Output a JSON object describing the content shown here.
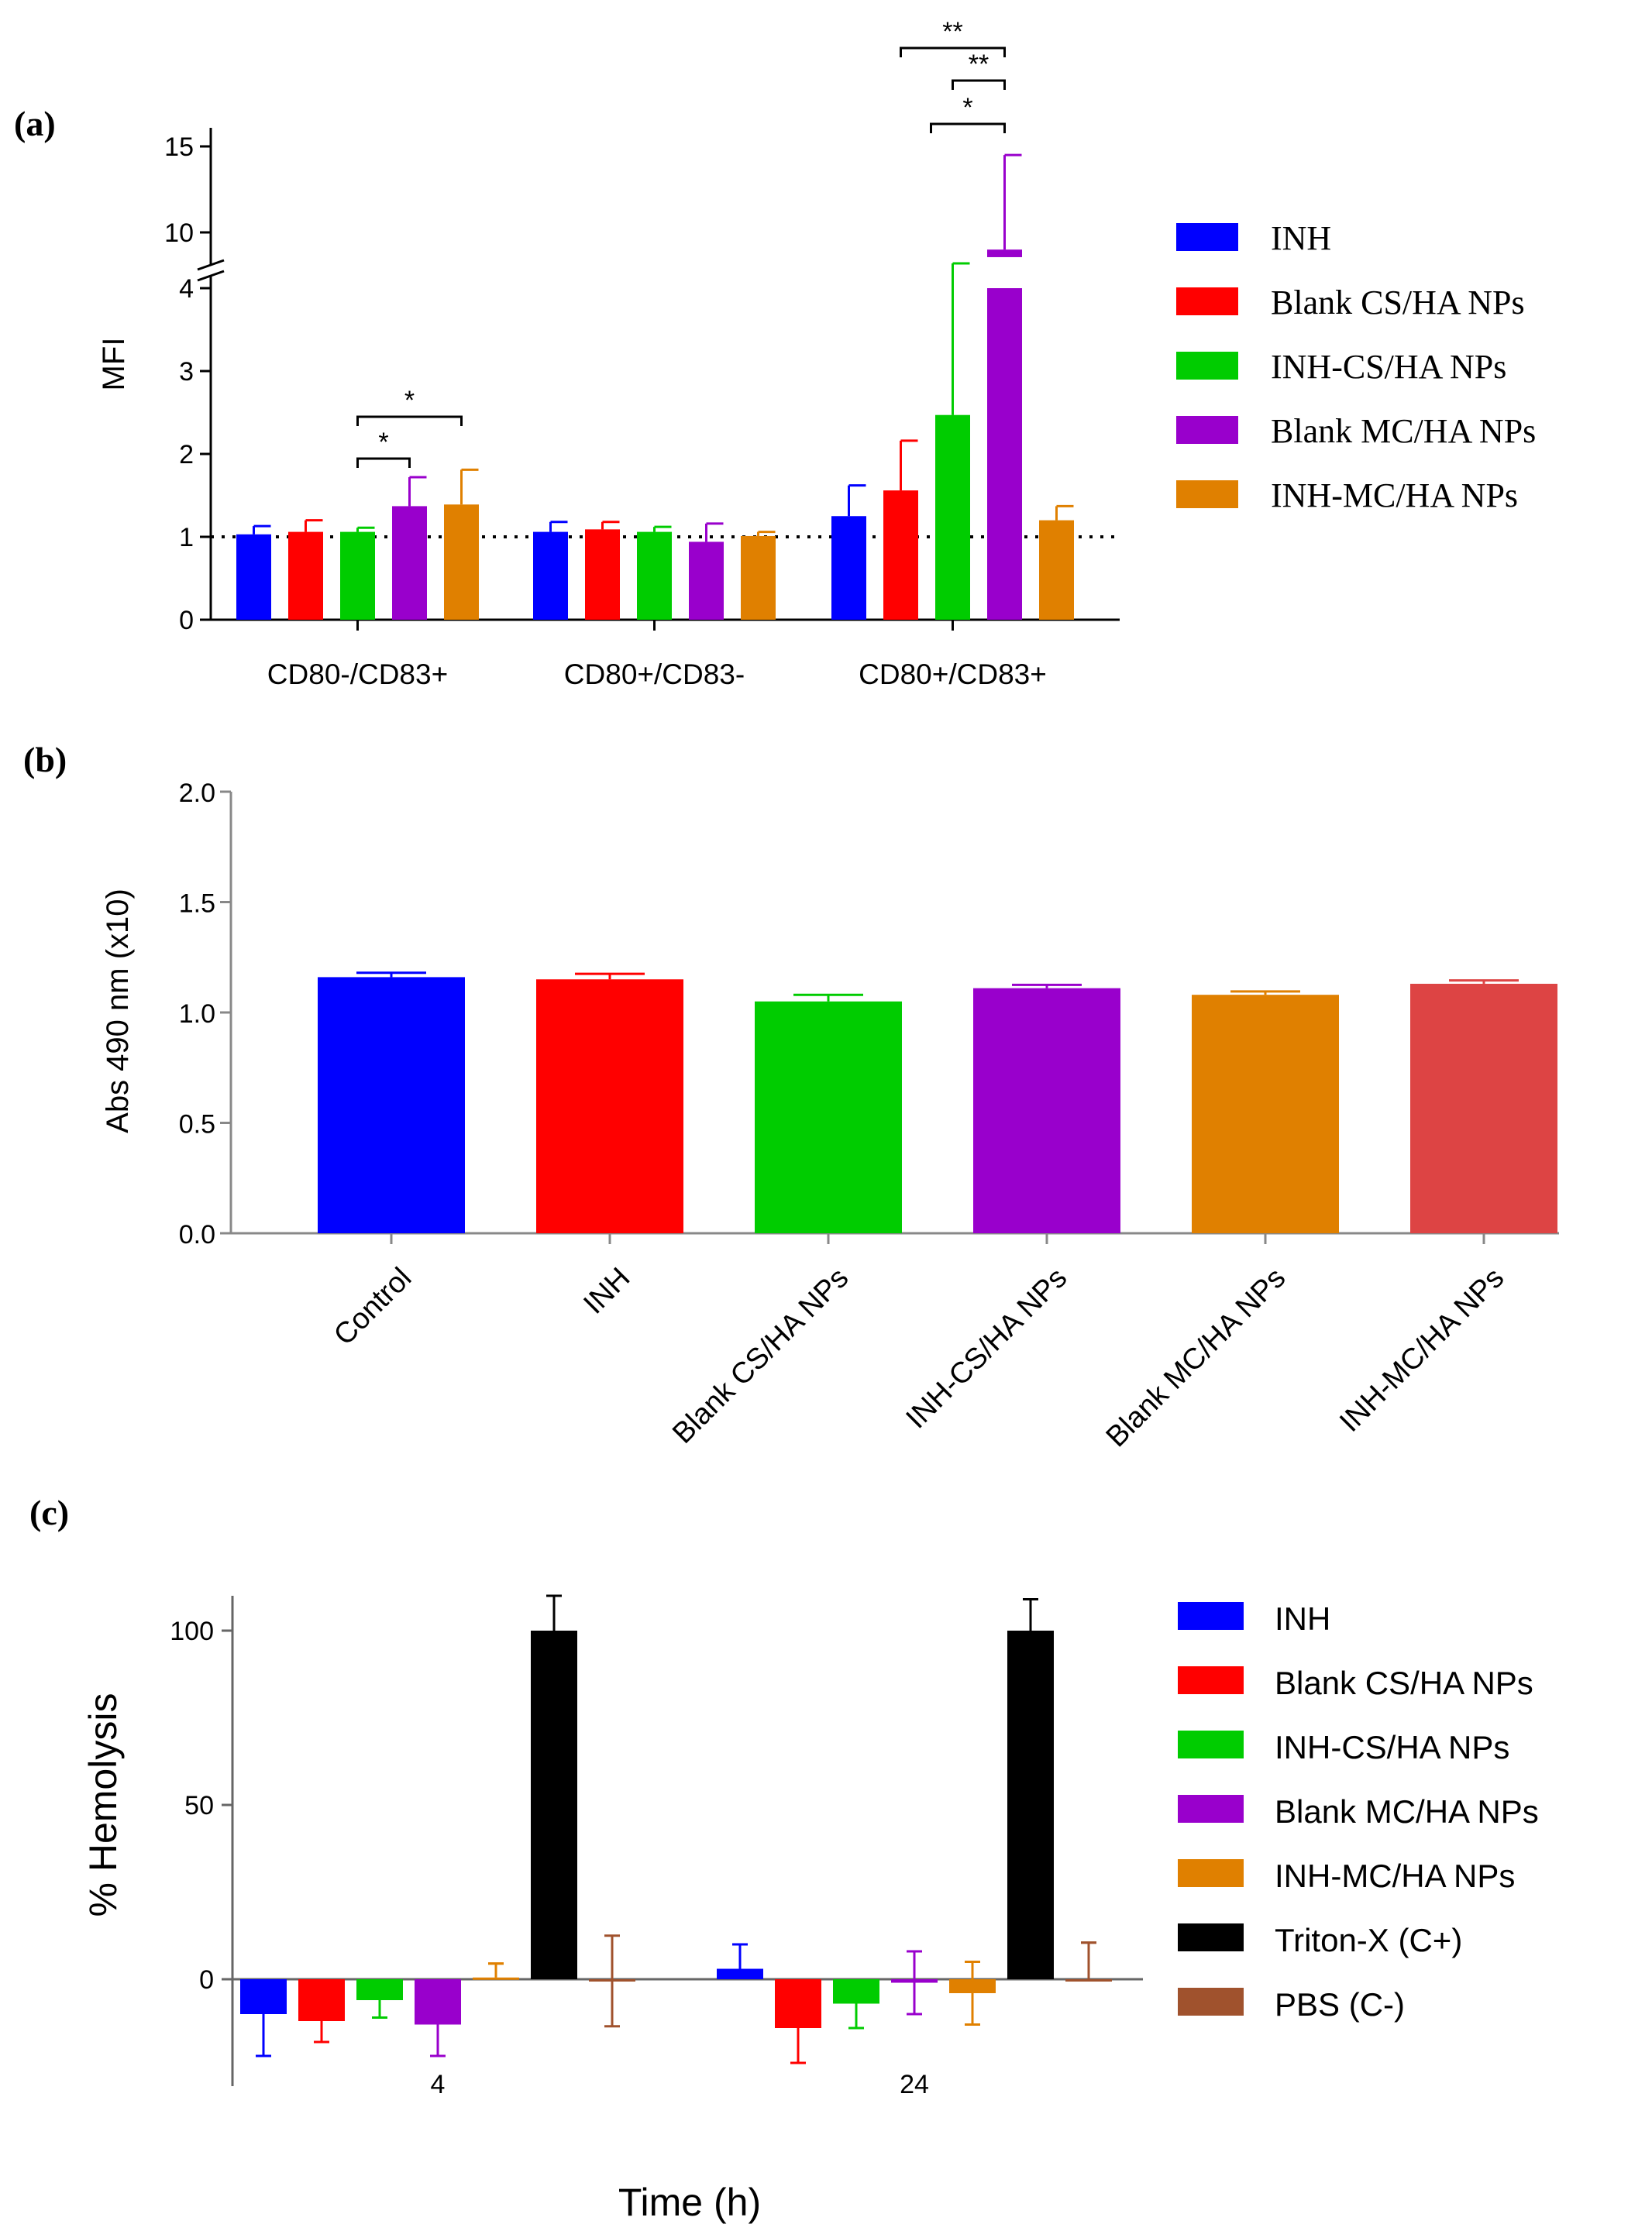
{
  "panels": {
    "a": {
      "label": "(a)"
    },
    "b": {
      "label": "(b)"
    },
    "c": {
      "label": "(c)"
    }
  },
  "chart_data": [
    {
      "type": "bar",
      "id": "a",
      "ylabel": "MFI",
      "xlabel": "",
      "categories": [
        "CD80-/CD83+",
        "CD80+/CD83-",
        "CD80+/CD83+"
      ],
      "axis_break": {
        "lower": [
          0,
          4
        ],
        "upper": [
          8.2,
          16
        ]
      },
      "yticks_lower": [
        0,
        1,
        2,
        3,
        4
      ],
      "yticks_upper": [
        10,
        15
      ],
      "reference_line": 1,
      "legend_position": "right",
      "colors": [
        "#0000ff",
        "#ff0000",
        "#00cc00",
        "#9900cc",
        "#e08000"
      ],
      "series": [
        {
          "name": "INH",
          "values": [
            1.03,
            1.06,
            1.25
          ],
          "errors": [
            0.1,
            0.12,
            0.37
          ]
        },
        {
          "name": "Blank CS/HA NPs",
          "values": [
            1.06,
            1.09,
            1.56
          ],
          "errors": [
            0.14,
            0.09,
            0.6
          ]
        },
        {
          "name": "INH-CS/HA NPs",
          "values": [
            1.06,
            1.06,
            2.47
          ],
          "errors": [
            0.05,
            0.06,
            1.57
          ]
        },
        {
          "name": "Blank MC/HA NPs",
          "values": [
            1.37,
            0.94,
            9.0
          ],
          "errors": [
            0.35,
            0.22,
            5.5
          ]
        },
        {
          "name": "INH-MC/HA NPs",
          "values": [
            1.39,
            1.01,
            1.2
          ],
          "errors": [
            0.42,
            0.05,
            0.17
          ]
        }
      ],
      "significance": [
        {
          "group": 0,
          "from": 2,
          "to": 3,
          "label": "*"
        },
        {
          "group": 0,
          "from": 2,
          "to": 4,
          "label": "*"
        },
        {
          "group": 2,
          "from": 1,
          "to": 3,
          "label": "**"
        },
        {
          "group": 2,
          "from": 2,
          "to": 3,
          "label": "**"
        },
        {
          "group": 2,
          "from": 3,
          "to": 3,
          "label": "*"
        }
      ]
    },
    {
      "type": "bar",
      "id": "b",
      "ylabel": "Abs 490 nm (x10)",
      "xlabel": "",
      "ylim": [
        0,
        2.0
      ],
      "yticks": [
        "0.0",
        "0.5",
        "1.0",
        "1.5",
        "2.0"
      ],
      "categories": [
        "Control",
        "INH",
        "Blank CS/HA NPs",
        "INH-CS/HA NPs",
        "Blank MC/HA NPs",
        "INH-MC/HA NPs"
      ],
      "values": [
        1.16,
        1.15,
        1.05,
        1.11,
        1.08,
        1.13
      ],
      "errors": [
        0.02,
        0.025,
        0.03,
        0.015,
        0.015,
        0.015
      ],
      "colors": [
        "#0000ff",
        "#ff0000",
        "#00cc00",
        "#9900cc",
        "#e08000",
        "#dd4444"
      ]
    },
    {
      "type": "bar",
      "id": "c",
      "ylabel": "% Hemolysis",
      "xlabel": "Time (h)",
      "ylim": [
        -24,
        112
      ],
      "yticks": [
        "0",
        "50",
        "100"
      ],
      "categories": [
        "4",
        "24"
      ],
      "legend_position": "right",
      "colors": [
        "#0000ff",
        "#ff0000",
        "#00cc00",
        "#9900cc",
        "#e08000",
        "#000000",
        "#a0522d"
      ],
      "series": [
        {
          "name": "INH",
          "values": [
            -10,
            3
          ],
          "errors": [
            12,
            7
          ]
        },
        {
          "name": "Blank CS/HA NPs",
          "values": [
            -12,
            -14
          ],
          "errors": [
            6,
            10
          ]
        },
        {
          "name": "INH-CS/HA NPs",
          "values": [
            -6,
            -7
          ],
          "errors": [
            5,
            7
          ]
        },
        {
          "name": "Blank MC/HA NPs",
          "values": [
            -13,
            -1
          ],
          "errors": [
            9,
            9
          ]
        },
        {
          "name": "INH-MC/HA NPs",
          "values": [
            0.5,
            -4
          ],
          "errors": [
            4,
            9
          ]
        },
        {
          "name": "Triton-X (C+)",
          "values": [
            100,
            100
          ],
          "errors": [
            10,
            9
          ]
        },
        {
          "name": "PBS (C-)",
          "values": [
            -0.5,
            0
          ],
          "errors": [
            13,
            10.5
          ]
        }
      ]
    }
  ]
}
